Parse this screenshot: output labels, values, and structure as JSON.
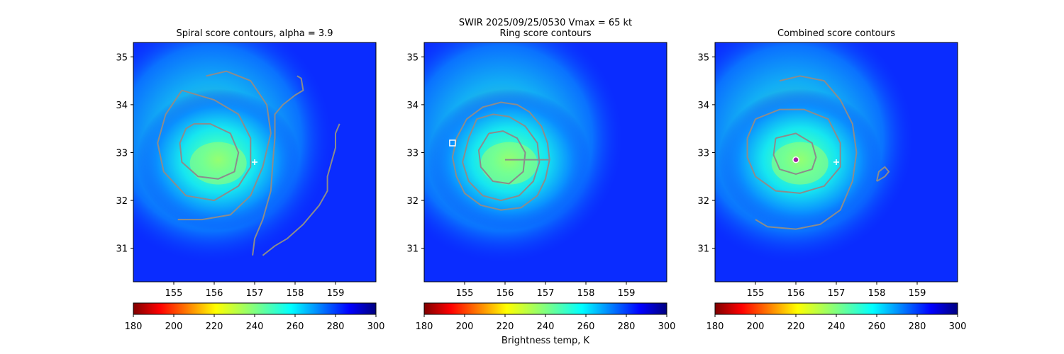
{
  "suptitle": "SWIR  2025/09/25/0530    Vmax = 65 kt",
  "colorbar": {
    "label": "Brightness temp, K",
    "ticks": [
      180,
      200,
      220,
      240,
      260,
      280,
      300
    ],
    "range": [
      180,
      300
    ],
    "colormap": "jet_r"
  },
  "colors": {
    "contour": "#8c8c8c",
    "marker": "#ffffff",
    "center_marker": "#a020a0"
  },
  "chart_data": [
    {
      "type": "heatmap",
      "title": "Spiral score contours, alpha =  3.9",
      "xlim": [
        154.0,
        160.0
      ],
      "ylim": [
        30.3,
        35.3
      ],
      "xticks": [
        155,
        156,
        157,
        158,
        159
      ],
      "yticks": [
        31,
        32,
        33,
        34,
        35
      ],
      "background_field": "brightness temperature (K)",
      "storm_center": {
        "x": 156.1,
        "y": 32.85,
        "min_temp_K": 245
      },
      "markers": [
        {
          "symbol": "plus",
          "x": 157.0,
          "y": 32.8
        }
      ],
      "contours": [
        [
          [
            155.5,
            33.6
          ],
          [
            155.9,
            33.6
          ],
          [
            156.4,
            33.4
          ],
          [
            156.6,
            33.0
          ],
          [
            156.5,
            32.6
          ],
          [
            156.1,
            32.45
          ],
          [
            155.6,
            32.5
          ],
          [
            155.2,
            32.8
          ],
          [
            155.15,
            33.2
          ],
          [
            155.3,
            33.5
          ],
          [
            155.5,
            33.6
          ]
        ],
        [
          [
            155.2,
            34.3
          ],
          [
            156.0,
            34.1
          ],
          [
            156.6,
            33.8
          ],
          [
            156.9,
            33.3
          ],
          [
            156.9,
            32.7
          ],
          [
            156.6,
            32.3
          ],
          [
            156.0,
            32.0
          ],
          [
            155.3,
            32.1
          ],
          [
            154.75,
            32.6
          ],
          [
            154.6,
            33.2
          ],
          [
            154.8,
            33.8
          ],
          [
            155.2,
            34.3
          ]
        ],
        [
          [
            155.1,
            31.6
          ],
          [
            155.7,
            31.6
          ],
          [
            156.4,
            31.7
          ],
          [
            156.9,
            32.1
          ],
          [
            157.2,
            32.7
          ],
          [
            157.4,
            33.4
          ],
          [
            157.3,
            34.0
          ],
          [
            156.9,
            34.5
          ],
          [
            156.3,
            34.7
          ],
          [
            155.8,
            34.6
          ]
        ],
        [
          [
            156.95,
            30.85
          ],
          [
            157.0,
            31.2
          ],
          [
            157.2,
            31.6
          ],
          [
            157.4,
            32.2
          ],
          [
            157.45,
            32.8
          ],
          [
            157.5,
            33.3
          ],
          [
            157.5,
            33.8
          ],
          [
            157.7,
            34.0
          ],
          [
            158.0,
            34.2
          ],
          [
            158.2,
            34.3
          ],
          [
            158.15,
            34.55
          ],
          [
            158.05,
            34.6
          ]
        ],
        [
          [
            157.2,
            30.85
          ],
          [
            157.5,
            31.05
          ],
          [
            157.8,
            31.2
          ],
          [
            158.2,
            31.5
          ],
          [
            158.6,
            31.9
          ],
          [
            158.8,
            32.2
          ],
          [
            158.8,
            32.5
          ],
          [
            158.9,
            32.8
          ],
          [
            159.0,
            33.1
          ],
          [
            159.0,
            33.4
          ],
          [
            159.1,
            33.6
          ]
        ]
      ]
    },
    {
      "type": "heatmap",
      "title": "Ring score contours",
      "xlim": [
        154.0,
        160.0
      ],
      "ylim": [
        30.3,
        35.3
      ],
      "xticks": [
        155,
        156,
        157,
        158,
        159
      ],
      "yticks": [
        31,
        32,
        33,
        34,
        35
      ],
      "background_field": "brightness temperature (K)",
      "storm_center": {
        "x": 156.1,
        "y": 32.85,
        "min_temp_K": 245
      },
      "markers": [
        {
          "symbol": "square",
          "x": 154.7,
          "y": 33.2
        }
      ],
      "contours": [
        [
          [
            156.0,
            32.85
          ],
          [
            157.1,
            32.85
          ],
          [
            157.05,
            33.2
          ],
          [
            156.9,
            33.55
          ],
          [
            156.6,
            33.85
          ],
          [
            156.3,
            34.0
          ],
          [
            155.9,
            34.05
          ],
          [
            155.45,
            33.95
          ],
          [
            155.05,
            33.7
          ],
          [
            154.8,
            33.3
          ],
          [
            154.7,
            32.9
          ],
          [
            154.8,
            32.5
          ],
          [
            155.0,
            32.15
          ],
          [
            155.4,
            31.9
          ],
          [
            155.9,
            31.8
          ],
          [
            156.4,
            31.85
          ],
          [
            156.8,
            32.1
          ],
          [
            157.0,
            32.45
          ],
          [
            157.1,
            32.85
          ]
        ],
        [
          [
            155.6,
            33.4
          ],
          [
            155.95,
            33.45
          ],
          [
            156.3,
            33.3
          ],
          [
            156.5,
            33.0
          ],
          [
            156.45,
            32.6
          ],
          [
            156.1,
            32.35
          ],
          [
            155.7,
            32.4
          ],
          [
            155.4,
            32.7
          ],
          [
            155.35,
            33.05
          ],
          [
            155.6,
            33.4
          ]
        ],
        [
          [
            155.1,
            33.3
          ],
          [
            155.3,
            33.7
          ],
          [
            155.7,
            33.8
          ],
          [
            156.1,
            33.75
          ],
          [
            156.5,
            33.55
          ],
          [
            156.8,
            33.2
          ],
          [
            156.85,
            32.8
          ],
          [
            156.7,
            32.4
          ],
          [
            156.35,
            32.1
          ],
          [
            155.9,
            32.0
          ],
          [
            155.45,
            32.1
          ],
          [
            155.1,
            32.4
          ],
          [
            154.95,
            32.8
          ],
          [
            155.1,
            33.3
          ]
        ]
      ]
    },
    {
      "type": "heatmap",
      "title": "Combined score contours",
      "xlim": [
        154.0,
        160.0
      ],
      "ylim": [
        30.3,
        35.3
      ],
      "xticks": [
        155,
        156,
        157,
        158,
        159
      ],
      "yticks": [
        31,
        32,
        33,
        34,
        35
      ],
      "background_field": "brightness temperature (K)",
      "storm_center": {
        "x": 156.1,
        "y": 32.85,
        "min_temp_K": 245
      },
      "markers": [
        {
          "symbol": "plus",
          "x": 157.0,
          "y": 32.8
        },
        {
          "symbol": "circle",
          "x": 156.0,
          "y": 32.85
        }
      ],
      "contours": [
        [
          [
            155.5,
            33.3
          ],
          [
            156.0,
            33.4
          ],
          [
            156.4,
            33.2
          ],
          [
            156.5,
            32.9
          ],
          [
            156.4,
            32.65
          ],
          [
            156.0,
            32.55
          ],
          [
            155.6,
            32.65
          ],
          [
            155.45,
            32.95
          ],
          [
            155.5,
            33.3
          ]
        ],
        [
          [
            155.0,
            33.7
          ],
          [
            155.6,
            33.9
          ],
          [
            156.2,
            33.9
          ],
          [
            156.8,
            33.7
          ],
          [
            157.1,
            33.2
          ],
          [
            157.1,
            32.7
          ],
          [
            156.7,
            32.3
          ],
          [
            156.1,
            32.15
          ],
          [
            155.5,
            32.2
          ],
          [
            155.0,
            32.5
          ],
          [
            154.8,
            32.9
          ],
          [
            154.8,
            33.3
          ],
          [
            155.0,
            33.7
          ]
        ],
        [
          [
            155.6,
            34.5
          ],
          [
            156.1,
            34.6
          ],
          [
            156.7,
            34.5
          ],
          [
            157.1,
            34.1
          ],
          [
            157.4,
            33.6
          ],
          [
            157.5,
            33.0
          ],
          [
            157.4,
            32.4
          ],
          [
            157.1,
            31.8
          ],
          [
            156.6,
            31.5
          ],
          [
            156.0,
            31.4
          ],
          [
            155.3,
            31.45
          ],
          [
            155.0,
            31.6
          ]
        ],
        [
          [
            158.0,
            32.4
          ],
          [
            158.2,
            32.5
          ],
          [
            158.3,
            32.6
          ],
          [
            158.2,
            32.7
          ],
          [
            158.05,
            32.6
          ],
          [
            158.0,
            32.4
          ]
        ]
      ]
    }
  ]
}
